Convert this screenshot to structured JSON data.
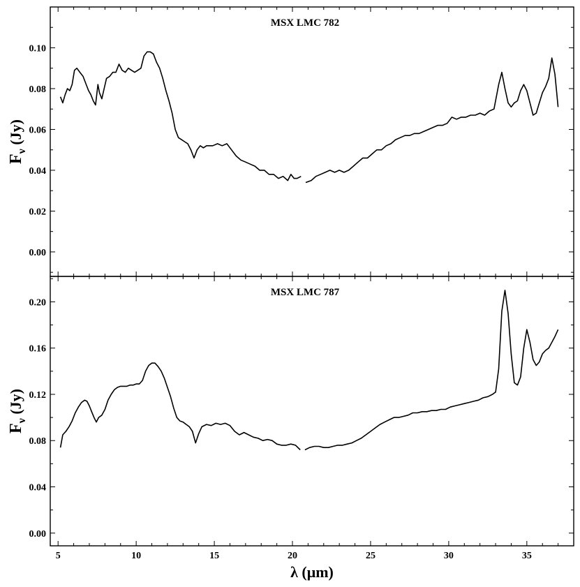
{
  "chart_data": [
    {
      "type": "line",
      "title": "MSX LMC 782",
      "xlabel": "λ (μm)",
      "ylabel_main": "F",
      "ylabel_sub": "ν",
      "ylabel_unit": " (Jy)",
      "xlim": [
        4.5,
        38.0
      ],
      "ylim": [
        -0.012,
        0.12
      ],
      "xticks": [
        5,
        10,
        15,
        20,
        25,
        30,
        35
      ],
      "yticks": [
        0.0,
        0.02,
        0.04,
        0.06,
        0.08,
        0.1
      ],
      "ytick_labels": [
        "0.00",
        "0.02",
        "0.04",
        "0.06",
        "0.08",
        "0.10"
      ],
      "series": [
        {
          "x": [
            5.15,
            5.3,
            5.45,
            5.6,
            5.75,
            5.9,
            6.05,
            6.2,
            6.4,
            6.6,
            6.8,
            6.95,
            7.1,
            7.25,
            7.4,
            7.55,
            7.65,
            7.8,
            7.95,
            8.1,
            8.3,
            8.5,
            8.7,
            8.9,
            9.1,
            9.3,
            9.5,
            9.7,
            9.9,
            10.1,
            10.3,
            10.5,
            10.7,
            10.9,
            11.1,
            11.3,
            11.5,
            11.7,
            11.9,
            12.1,
            12.3,
            12.5,
            12.7,
            12.9,
            13.1,
            13.3,
            13.5,
            13.7,
            13.9,
            14.1,
            14.3,
            14.5,
            14.7,
            14.9,
            15.2,
            15.5,
            15.8,
            16.1,
            16.4,
            16.7,
            17.0,
            17.3,
            17.6,
            17.9,
            18.2,
            18.5,
            18.8,
            19.1,
            19.4,
            19.7,
            19.9,
            20.1,
            20.3,
            20.55
          ],
          "y": [
            0.076,
            0.073,
            0.077,
            0.08,
            0.079,
            0.082,
            0.089,
            0.09,
            0.088,
            0.086,
            0.082,
            0.079,
            0.077,
            0.074,
            0.072,
            0.082,
            0.078,
            0.075,
            0.08,
            0.085,
            0.086,
            0.088,
            0.088,
            0.092,
            0.089,
            0.088,
            0.09,
            0.089,
            0.088,
            0.089,
            0.09,
            0.096,
            0.098,
            0.098,
            0.097,
            0.093,
            0.09,
            0.085,
            0.079,
            0.074,
            0.068,
            0.06,
            0.056,
            0.055,
            0.054,
            0.053,
            0.05,
            0.046,
            0.05,
            0.052,
            0.051,
            0.052,
            0.052,
            0.052,
            0.053,
            0.052,
            0.053,
            0.05,
            0.047,
            0.045,
            0.044,
            0.043,
            0.042,
            0.04,
            0.04,
            0.038,
            0.038,
            0.036,
            0.037,
            0.035,
            0.038,
            0.036,
            0.036,
            0.037
          ]
        },
        {
          "x": [
            20.85,
            21.2,
            21.5,
            21.8,
            22.1,
            22.4,
            22.7,
            23.0,
            23.3,
            23.6,
            23.9,
            24.2,
            24.5,
            24.8,
            25.1,
            25.4,
            25.7,
            26.0,
            26.3,
            26.6,
            26.9,
            27.2,
            27.5,
            27.8,
            28.1,
            28.4,
            28.7,
            29.0,
            29.3,
            29.6,
            29.9,
            30.2,
            30.5,
            30.8,
            31.1,
            31.4,
            31.7,
            32.0,
            32.3,
            32.6,
            32.9,
            33.2,
            33.4,
            33.6,
            33.8,
            34.0,
            34.2,
            34.4,
            34.6,
            34.8,
            35.0,
            35.2,
            35.4,
            35.6,
            35.8,
            36.0,
            36.2,
            36.4,
            36.6,
            36.8,
            37.0
          ],
          "y": [
            0.034,
            0.035,
            0.037,
            0.038,
            0.039,
            0.04,
            0.039,
            0.04,
            0.039,
            0.04,
            0.042,
            0.044,
            0.046,
            0.046,
            0.048,
            0.05,
            0.05,
            0.052,
            0.053,
            0.055,
            0.056,
            0.057,
            0.057,
            0.058,
            0.058,
            0.059,
            0.06,
            0.061,
            0.062,
            0.062,
            0.063,
            0.066,
            0.065,
            0.066,
            0.066,
            0.067,
            0.067,
            0.068,
            0.067,
            0.069,
            0.07,
            0.082,
            0.088,
            0.08,
            0.073,
            0.071,
            0.073,
            0.074,
            0.079,
            0.082,
            0.079,
            0.073,
            0.067,
            0.068,
            0.073,
            0.078,
            0.081,
            0.085,
            0.095,
            0.087,
            0.071
          ]
        }
      ]
    },
    {
      "type": "line",
      "title": "MSX LMC 787",
      "xlabel": "λ (μm)",
      "ylabel_main": "F",
      "ylabel_sub": "ν",
      "ylabel_unit": " (Jy)",
      "xlim": [
        4.5,
        38.0
      ],
      "ylim": [
        -0.011,
        0.222
      ],
      "xticks": [
        5,
        10,
        15,
        20,
        25,
        30,
        35
      ],
      "yticks": [
        0.0,
        0.04,
        0.08,
        0.12,
        0.16,
        0.2
      ],
      "ytick_labels": [
        "0.00",
        "0.04",
        "0.08",
        "0.12",
        "0.16",
        "0.20"
      ],
      "series": [
        {
          "x": [
            5.15,
            5.3,
            5.5,
            5.7,
            5.9,
            6.1,
            6.3,
            6.5,
            6.7,
            6.85,
            7.0,
            7.15,
            7.3,
            7.45,
            7.6,
            7.8,
            8.0,
            8.2,
            8.4,
            8.6,
            8.8,
            9.0,
            9.2,
            9.4,
            9.6,
            9.8,
            10.0,
            10.2,
            10.4,
            10.6,
            10.8,
            11.0,
            11.2,
            11.4,
            11.6,
            11.8,
            12.0,
            12.2,
            12.4,
            12.6,
            12.8,
            13.0,
            13.2,
            13.4,
            13.6,
            13.8,
            14.0,
            14.2,
            14.5,
            14.8,
            15.1,
            15.4,
            15.7,
            16.0,
            16.3,
            16.6,
            16.9,
            17.2,
            17.5,
            17.8,
            18.1,
            18.4,
            18.7,
            19.0,
            19.3,
            19.6,
            19.9,
            20.2,
            20.5
          ],
          "y": [
            0.074,
            0.085,
            0.088,
            0.092,
            0.097,
            0.104,
            0.109,
            0.113,
            0.115,
            0.114,
            0.11,
            0.105,
            0.1,
            0.096,
            0.1,
            0.102,
            0.107,
            0.115,
            0.12,
            0.124,
            0.126,
            0.127,
            0.127,
            0.127,
            0.128,
            0.128,
            0.129,
            0.129,
            0.132,
            0.14,
            0.145,
            0.147,
            0.147,
            0.144,
            0.14,
            0.134,
            0.126,
            0.118,
            0.108,
            0.1,
            0.097,
            0.096,
            0.094,
            0.092,
            0.088,
            0.078,
            0.086,
            0.092,
            0.094,
            0.093,
            0.095,
            0.094,
            0.095,
            0.093,
            0.088,
            0.085,
            0.087,
            0.085,
            0.083,
            0.082,
            0.08,
            0.081,
            0.08,
            0.077,
            0.076,
            0.076,
            0.077,
            0.076,
            0.072
          ]
        },
        {
          "x": [
            20.8,
            21.1,
            21.4,
            21.7,
            22.0,
            22.3,
            22.6,
            22.9,
            23.2,
            23.5,
            23.8,
            24.1,
            24.4,
            24.7,
            25.0,
            25.3,
            25.6,
            25.9,
            26.2,
            26.5,
            26.8,
            27.1,
            27.4,
            27.7,
            28.0,
            28.3,
            28.6,
            28.9,
            29.2,
            29.5,
            29.8,
            30.1,
            30.4,
            30.7,
            31.0,
            31.3,
            31.6,
            31.9,
            32.2,
            32.5,
            32.8,
            33.0,
            33.2,
            33.4,
            33.6,
            33.8,
            34.0,
            34.2,
            34.4,
            34.6,
            34.8,
            35.0,
            35.2,
            35.4,
            35.6,
            35.8,
            36.0,
            36.2,
            36.4,
            36.6,
            36.8,
            37.0
          ],
          "y": [
            0.072,
            0.074,
            0.075,
            0.075,
            0.074,
            0.074,
            0.075,
            0.076,
            0.076,
            0.077,
            0.078,
            0.08,
            0.082,
            0.085,
            0.088,
            0.091,
            0.094,
            0.096,
            0.098,
            0.1,
            0.1,
            0.101,
            0.102,
            0.104,
            0.104,
            0.105,
            0.105,
            0.106,
            0.106,
            0.107,
            0.107,
            0.109,
            0.11,
            0.111,
            0.112,
            0.113,
            0.114,
            0.115,
            0.117,
            0.118,
            0.12,
            0.122,
            0.142,
            0.192,
            0.21,
            0.19,
            0.155,
            0.13,
            0.128,
            0.135,
            0.16,
            0.176,
            0.165,
            0.15,
            0.145,
            0.148,
            0.155,
            0.158,
            0.16,
            0.165,
            0.17,
            0.176
          ]
        }
      ]
    }
  ]
}
